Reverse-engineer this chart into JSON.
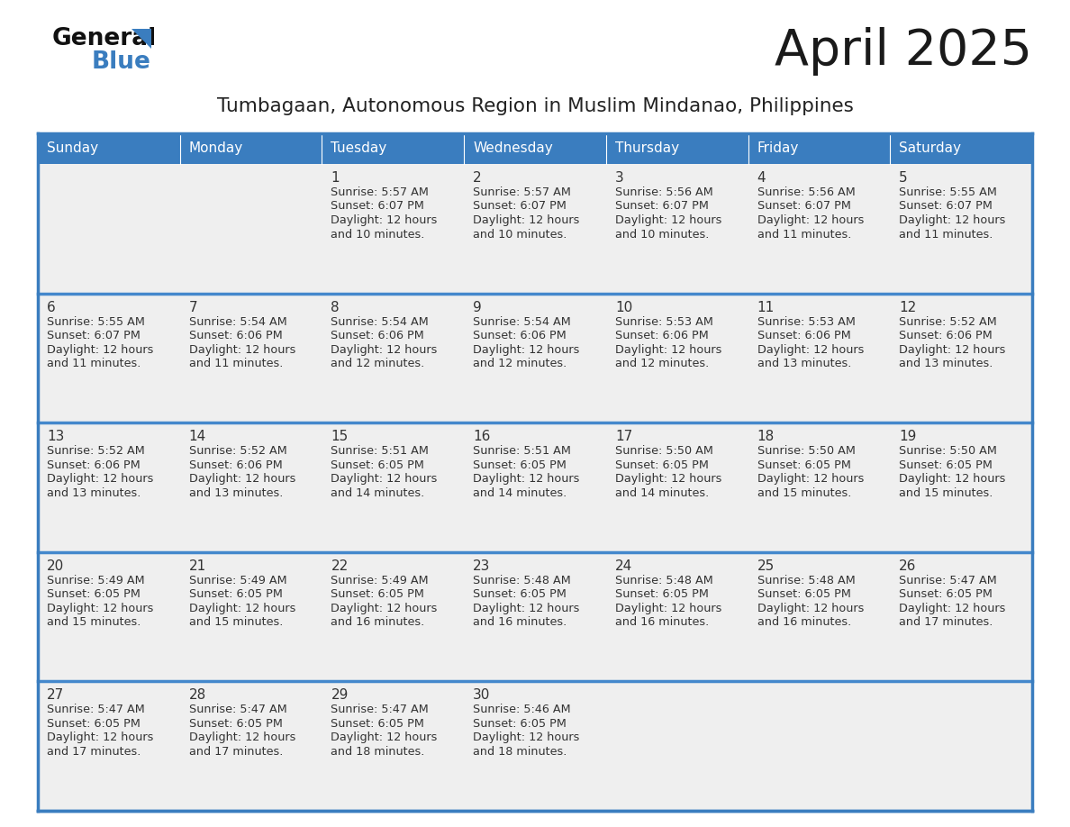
{
  "title": "April 2025",
  "subtitle": "Tumbagaan, Autonomous Region in Muslim Mindanao, Philippines",
  "days_of_week": [
    "Sunday",
    "Monday",
    "Tuesday",
    "Wednesday",
    "Thursday",
    "Friday",
    "Saturday"
  ],
  "header_bg": "#3a7dbf",
  "header_text": "#ffffff",
  "cell_bg": "#efefef",
  "border_color": "#3a7dbf",
  "row_sep_color": "#4488cc",
  "title_color": "#1a1a1a",
  "subtitle_color": "#222222",
  "day_num_color": "#333333",
  "cell_text_color": "#333333",
  "logo_general_color": "#111111",
  "logo_blue_color": "#3a7dbf",
  "logo_triangle_color": "#3a7dbf",
  "calendar_data": [
    [
      {
        "day": null,
        "sunrise": null,
        "sunset": null,
        "daylight": null
      },
      {
        "day": null,
        "sunrise": null,
        "sunset": null,
        "daylight": null
      },
      {
        "day": 1,
        "sunrise": "5:57 AM",
        "sunset": "6:07 PM",
        "daylight": "12 hours\nand 10 minutes."
      },
      {
        "day": 2,
        "sunrise": "5:57 AM",
        "sunset": "6:07 PM",
        "daylight": "12 hours\nand 10 minutes."
      },
      {
        "day": 3,
        "sunrise": "5:56 AM",
        "sunset": "6:07 PM",
        "daylight": "12 hours\nand 10 minutes."
      },
      {
        "day": 4,
        "sunrise": "5:56 AM",
        "sunset": "6:07 PM",
        "daylight": "12 hours\nand 11 minutes."
      },
      {
        "day": 5,
        "sunrise": "5:55 AM",
        "sunset": "6:07 PM",
        "daylight": "12 hours\nand 11 minutes."
      }
    ],
    [
      {
        "day": 6,
        "sunrise": "5:55 AM",
        "sunset": "6:07 PM",
        "daylight": "12 hours\nand 11 minutes."
      },
      {
        "day": 7,
        "sunrise": "5:54 AM",
        "sunset": "6:06 PM",
        "daylight": "12 hours\nand 11 minutes."
      },
      {
        "day": 8,
        "sunrise": "5:54 AM",
        "sunset": "6:06 PM",
        "daylight": "12 hours\nand 12 minutes."
      },
      {
        "day": 9,
        "sunrise": "5:54 AM",
        "sunset": "6:06 PM",
        "daylight": "12 hours\nand 12 minutes."
      },
      {
        "day": 10,
        "sunrise": "5:53 AM",
        "sunset": "6:06 PM",
        "daylight": "12 hours\nand 12 minutes."
      },
      {
        "day": 11,
        "sunrise": "5:53 AM",
        "sunset": "6:06 PM",
        "daylight": "12 hours\nand 13 minutes."
      },
      {
        "day": 12,
        "sunrise": "5:52 AM",
        "sunset": "6:06 PM",
        "daylight": "12 hours\nand 13 minutes."
      }
    ],
    [
      {
        "day": 13,
        "sunrise": "5:52 AM",
        "sunset": "6:06 PM",
        "daylight": "12 hours\nand 13 minutes."
      },
      {
        "day": 14,
        "sunrise": "5:52 AM",
        "sunset": "6:06 PM",
        "daylight": "12 hours\nand 13 minutes."
      },
      {
        "day": 15,
        "sunrise": "5:51 AM",
        "sunset": "6:05 PM",
        "daylight": "12 hours\nand 14 minutes."
      },
      {
        "day": 16,
        "sunrise": "5:51 AM",
        "sunset": "6:05 PM",
        "daylight": "12 hours\nand 14 minutes."
      },
      {
        "day": 17,
        "sunrise": "5:50 AM",
        "sunset": "6:05 PM",
        "daylight": "12 hours\nand 14 minutes."
      },
      {
        "day": 18,
        "sunrise": "5:50 AM",
        "sunset": "6:05 PM",
        "daylight": "12 hours\nand 15 minutes."
      },
      {
        "day": 19,
        "sunrise": "5:50 AM",
        "sunset": "6:05 PM",
        "daylight": "12 hours\nand 15 minutes."
      }
    ],
    [
      {
        "day": 20,
        "sunrise": "5:49 AM",
        "sunset": "6:05 PM",
        "daylight": "12 hours\nand 15 minutes."
      },
      {
        "day": 21,
        "sunrise": "5:49 AM",
        "sunset": "6:05 PM",
        "daylight": "12 hours\nand 15 minutes."
      },
      {
        "day": 22,
        "sunrise": "5:49 AM",
        "sunset": "6:05 PM",
        "daylight": "12 hours\nand 16 minutes."
      },
      {
        "day": 23,
        "sunrise": "5:48 AM",
        "sunset": "6:05 PM",
        "daylight": "12 hours\nand 16 minutes."
      },
      {
        "day": 24,
        "sunrise": "5:48 AM",
        "sunset": "6:05 PM",
        "daylight": "12 hours\nand 16 minutes."
      },
      {
        "day": 25,
        "sunrise": "5:48 AM",
        "sunset": "6:05 PM",
        "daylight": "12 hours\nand 16 minutes."
      },
      {
        "day": 26,
        "sunrise": "5:47 AM",
        "sunset": "6:05 PM",
        "daylight": "12 hours\nand 17 minutes."
      }
    ],
    [
      {
        "day": 27,
        "sunrise": "5:47 AM",
        "sunset": "6:05 PM",
        "daylight": "12 hours\nand 17 minutes."
      },
      {
        "day": 28,
        "sunrise": "5:47 AM",
        "sunset": "6:05 PM",
        "daylight": "12 hours\nand 17 minutes."
      },
      {
        "day": 29,
        "sunrise": "5:47 AM",
        "sunset": "6:05 PM",
        "daylight": "12 hours\nand 18 minutes."
      },
      {
        "day": 30,
        "sunrise": "5:46 AM",
        "sunset": "6:05 PM",
        "daylight": "12 hours\nand 18 minutes."
      },
      {
        "day": null,
        "sunrise": null,
        "sunset": null,
        "daylight": null
      },
      {
        "day": null,
        "sunrise": null,
        "sunset": null,
        "daylight": null
      },
      {
        "day": null,
        "sunrise": null,
        "sunset": null,
        "daylight": null
      }
    ]
  ]
}
